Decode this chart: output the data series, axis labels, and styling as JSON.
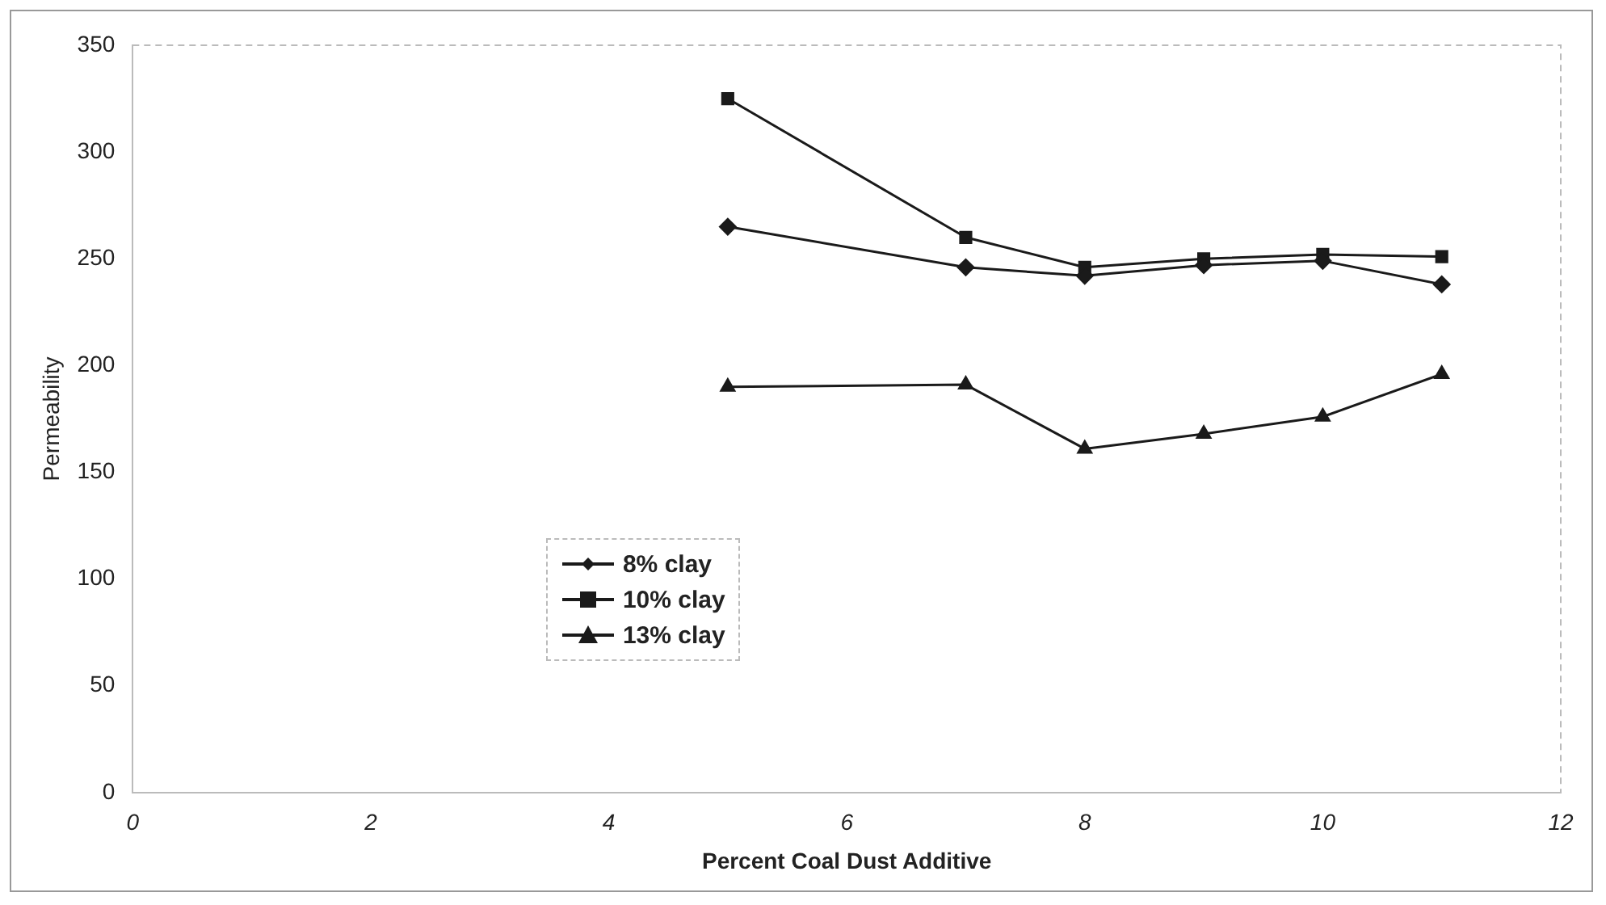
{
  "chart_data": {
    "type": "line",
    "xlabel": "Percent Coal Dust Additive",
    "ylabel": "Permeability",
    "x": [
      5,
      7,
      8,
      9,
      10,
      11
    ],
    "series": [
      {
        "name": "8% clay",
        "color": "#1a1a1a",
        "marker": "diamond",
        "values": [
          265,
          246,
          242,
          247,
          249,
          238
        ]
      },
      {
        "name": "10% clay",
        "color": "#1a1a1a",
        "marker": "square",
        "values": [
          325,
          260,
          246,
          250,
          252,
          251
        ]
      },
      {
        "name": "13% clay",
        "color": "#1a1a1a",
        "marker": "triangle",
        "values": [
          190,
          191,
          161,
          168,
          176,
          196
        ]
      }
    ],
    "xlim": [
      0,
      12
    ],
    "xticks": [
      0,
      2,
      4,
      6,
      8,
      10,
      12
    ],
    "ylim": [
      0,
      350
    ],
    "yticks": [
      0,
      50,
      100,
      150,
      200,
      250,
      300,
      350
    ],
    "grid": false,
    "legend": "bottom left",
    "line_style": "solid"
  }
}
